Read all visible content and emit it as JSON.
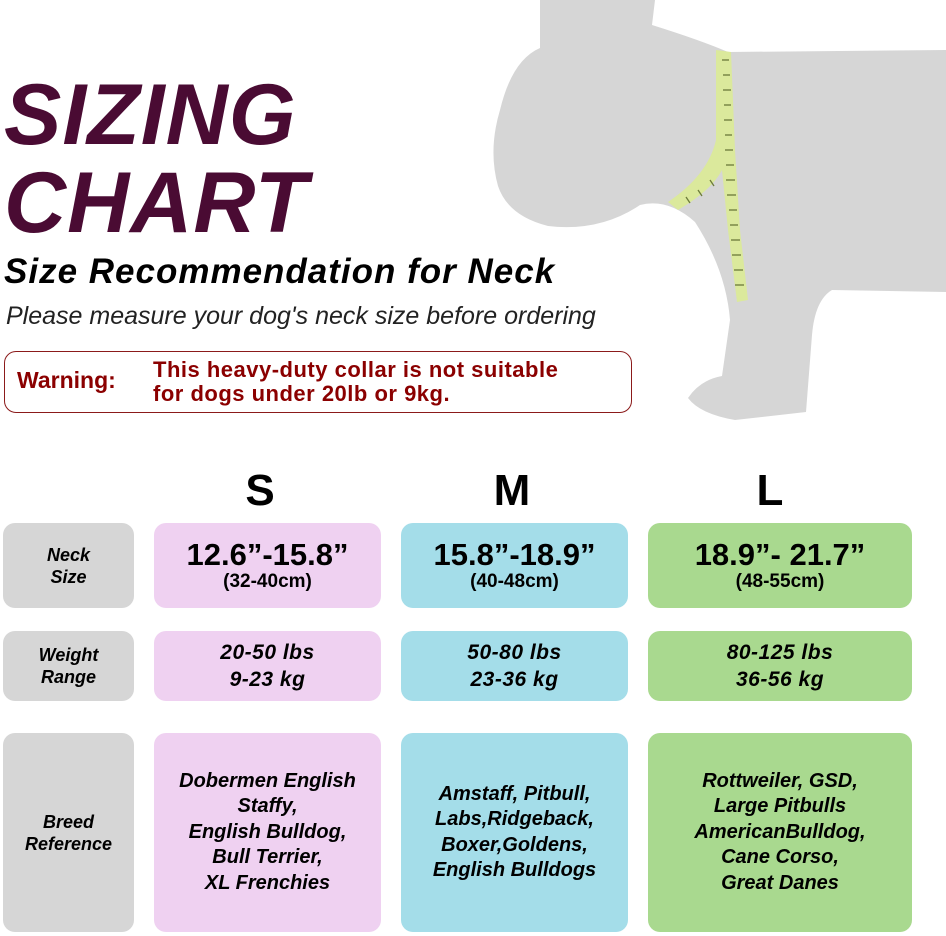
{
  "title_line1": "SIZING",
  "title_line2": "CHART",
  "subtitle": "Size Recommendation for Neck",
  "instruction": "Please measure your dog's neck size before ordering",
  "warning": {
    "label": "Warning:",
    "line1": "This heavy-duty collar is not suitable",
    "line2": "for dogs under 20lb or 9kg."
  },
  "sizes": [
    "S",
    "M",
    "L"
  ],
  "row_labels": {
    "neck": [
      "Neck",
      "Size"
    ],
    "weight": [
      "Weight",
      "Range"
    ],
    "breed": [
      "Breed",
      "Reference"
    ]
  },
  "neck": [
    {
      "in": "12.6”-15.8”",
      "cm": "(32-40cm)"
    },
    {
      "in": "15.8”-18.9”",
      "cm": "(40-48cm)"
    },
    {
      "in": "18.9”- 21.7”",
      "cm": "(48-55cm)"
    }
  ],
  "weight": [
    {
      "lbs": "20-50 lbs",
      "kg": "9-23 kg"
    },
    {
      "lbs": "50-80 lbs",
      "kg": "23-36 kg"
    },
    {
      "lbs": "80-125 lbs",
      "kg": "36-56 kg"
    }
  ],
  "breeds": [
    [
      "Dobermen English",
      "Staffy,",
      "English Bulldog,",
      "Bull Terrier,",
      "XL Frenchies"
    ],
    [
      "Amstaff, Pitbull,",
      "Labs,Ridgeback,",
      "Boxer,Goldens,",
      "English Bulldogs"
    ],
    [
      "Rottweiler, GSD,",
      "Large Pitbulls",
      "AmericanBulldog,",
      "Cane Corso,",
      "Great Danes"
    ]
  ],
  "colors": {
    "title": "#4a0b33",
    "warning": "#8b0000",
    "label_bg": "#d6d6d6",
    "S": "#efd1f1",
    "M": "#a4dde9",
    "L": "#a9d98f",
    "dog": "#d6d6d6",
    "tape": "#dbe99c"
  }
}
